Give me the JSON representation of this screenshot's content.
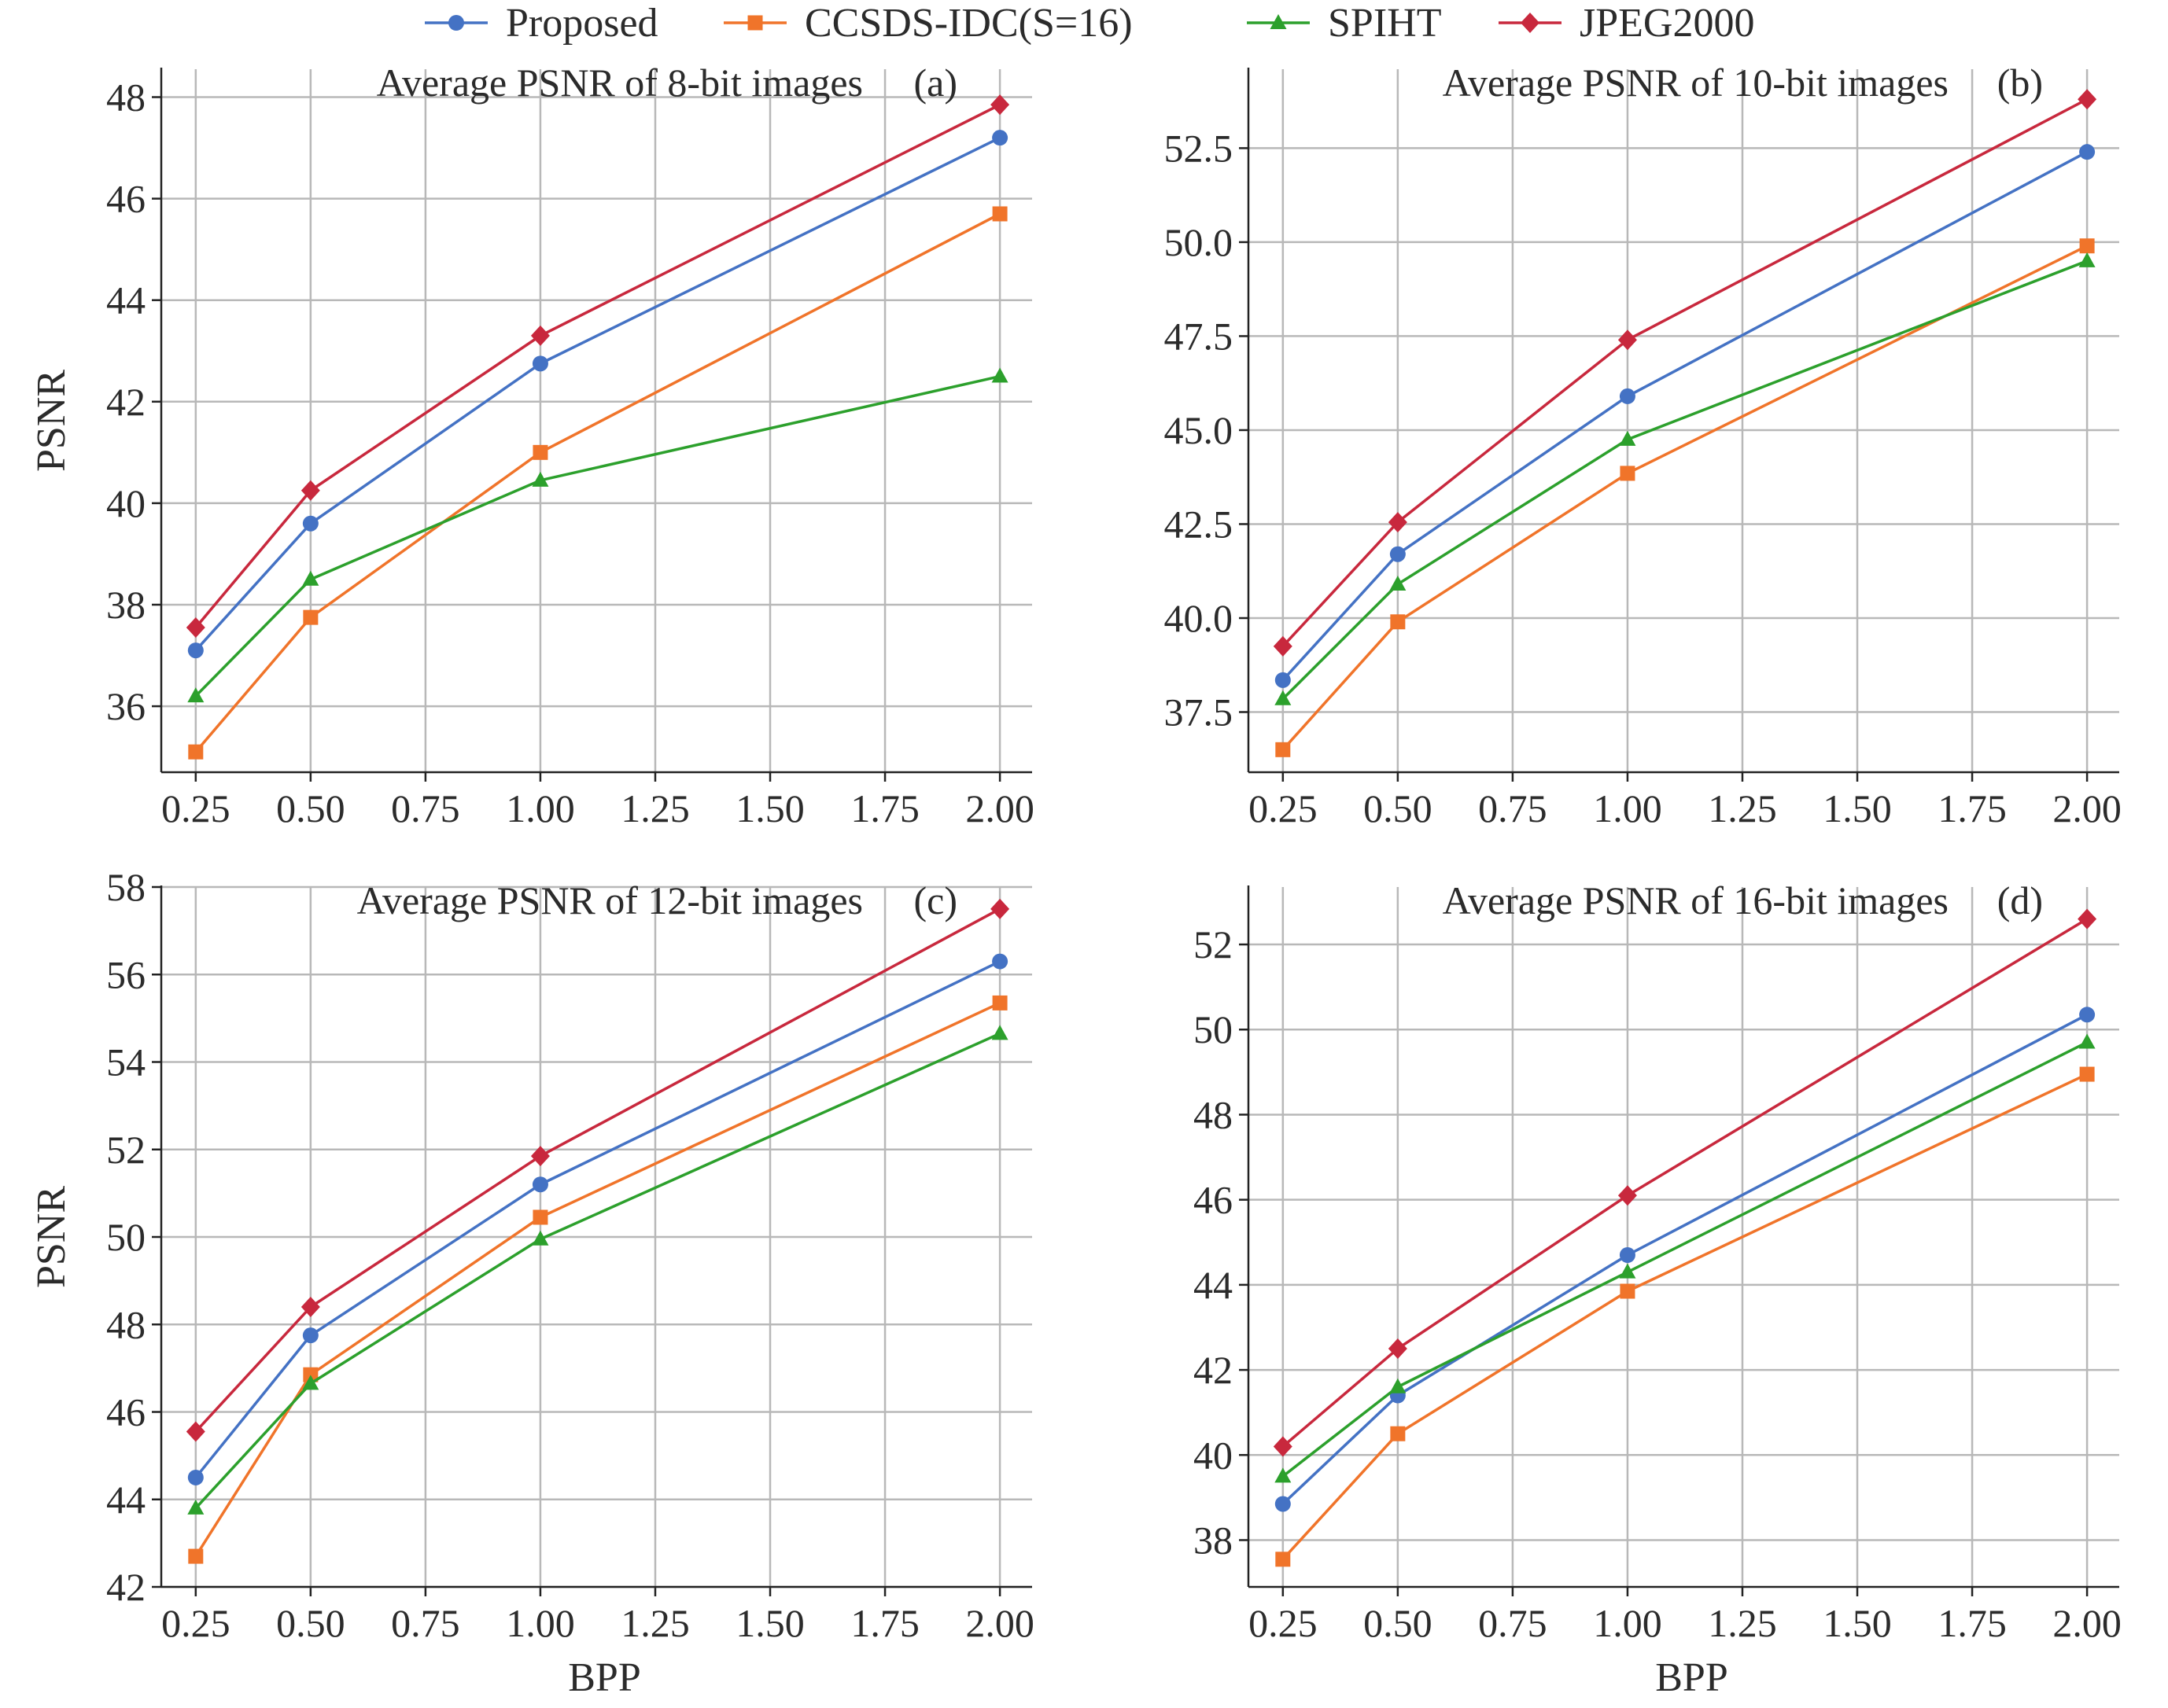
{
  "legend": [
    {
      "name": "Proposed",
      "color": "#4472c4",
      "marker": "circle"
    },
    {
      "name": "CCSDS-IDC(S=16)",
      "color": "#f0742a",
      "marker": "square"
    },
    {
      "name": "SPIHT",
      "color": "#2ca02c",
      "marker": "triangle"
    },
    {
      "name": "JPEG2000",
      "color": "#c8283d",
      "marker": "diamond"
    }
  ],
  "chart_data": [
    {
      "type": "line",
      "title": "Average PSNR of 8-bit images",
      "panel_label": "(a)",
      "xlabel": "",
      "ylabel": "PSNR",
      "x": [
        0.25,
        0.5,
        1.0,
        2.0
      ],
      "xlim": [
        0.175,
        2.07
      ],
      "ylim": [
        34.7,
        48.55
      ],
      "xticks": [
        "0.25",
        "0.50",
        "0.75",
        "1.00",
        "1.25",
        "1.50",
        "1.75",
        "2.00"
      ],
      "yticks": [
        "36",
        "38",
        "40",
        "42",
        "44",
        "46",
        "48"
      ],
      "grid": true,
      "series": [
        {
          "name": "Proposed",
          "values": [
            37.1,
            39.6,
            42.75,
            47.2
          ]
        },
        {
          "name": "CCSDS-IDC(S=16)",
          "values": [
            35.1,
            37.75,
            41.0,
            45.7
          ]
        },
        {
          "name": "SPIHT",
          "values": [
            36.2,
            38.5,
            40.45,
            42.5
          ]
        },
        {
          "name": "JPEG2000",
          "values": [
            37.55,
            40.25,
            43.3,
            47.85
          ]
        }
      ]
    },
    {
      "type": "line",
      "title": "Average PSNR of 10-bit images",
      "panel_label": "(b)",
      "xlabel": "",
      "ylabel": "",
      "x": [
        0.25,
        0.5,
        1.0,
        2.0
      ],
      "xlim": [
        0.175,
        2.07
      ],
      "ylim": [
        35.9,
        54.6
      ],
      "xticks": [
        "0.25",
        "0.50",
        "0.75",
        "1.00",
        "1.25",
        "1.50",
        "1.75",
        "2.00"
      ],
      "yticks": [
        "37.5",
        "40.0",
        "42.5",
        "45.0",
        "47.5",
        "50.0",
        "52.5"
      ],
      "grid": true,
      "series": [
        {
          "name": "Proposed",
          "values": [
            38.35,
            41.7,
            45.9,
            52.4
          ]
        },
        {
          "name": "CCSDS-IDC(S=16)",
          "values": [
            36.5,
            39.9,
            43.85,
            49.9
          ]
        },
        {
          "name": "SPIHT",
          "values": [
            37.85,
            40.9,
            44.75,
            49.5
          ]
        },
        {
          "name": "JPEG2000",
          "values": [
            39.25,
            42.55,
            47.4,
            53.8
          ]
        }
      ]
    },
    {
      "type": "line",
      "title": "Average PSNR of 12-bit images",
      "panel_label": "(c)",
      "xlabel": "BPP",
      "ylabel": "PSNR",
      "x": [
        0.25,
        0.5,
        1.0,
        2.0
      ],
      "xlim": [
        0.175,
        2.07
      ],
      "ylim": [
        42.0,
        58.0
      ],
      "xticks": [
        "0.25",
        "0.50",
        "0.75",
        "1.00",
        "1.25",
        "1.50",
        "1.75",
        "2.00"
      ],
      "yticks": [
        "42",
        "44",
        "46",
        "48",
        "50",
        "52",
        "54",
        "56",
        "58"
      ],
      "grid": true,
      "series": [
        {
          "name": "Proposed",
          "values": [
            44.5,
            47.75,
            51.2,
            56.3
          ]
        },
        {
          "name": "CCSDS-IDC(S=16)",
          "values": [
            42.7,
            46.85,
            50.45,
            55.35
          ]
        },
        {
          "name": "SPIHT",
          "values": [
            43.8,
            46.65,
            49.95,
            54.65
          ]
        },
        {
          "name": "JPEG2000",
          "values": [
            45.55,
            48.4,
            51.85,
            57.5
          ]
        }
      ]
    },
    {
      "type": "line",
      "title": "Average PSNR of 16-bit images",
      "panel_label": "(d)",
      "xlabel": "BPP",
      "ylabel": "",
      "x": [
        0.25,
        0.5,
        1.0,
        2.0
      ],
      "xlim": [
        0.175,
        2.07
      ],
      "ylim": [
        36.9,
        53.35
      ],
      "xticks": [
        "0.25",
        "0.50",
        "0.75",
        "1.00",
        "1.25",
        "1.50",
        "1.75",
        "2.00"
      ],
      "yticks": [
        "38",
        "40",
        "42",
        "44",
        "46",
        "48",
        "50",
        "52"
      ],
      "grid": true,
      "series": [
        {
          "name": "Proposed",
          "values": [
            38.85,
            41.4,
            44.7,
            50.35
          ]
        },
        {
          "name": "CCSDS-IDC(S=16)",
          "values": [
            37.55,
            40.5,
            43.85,
            48.95
          ]
        },
        {
          "name": "SPIHT",
          "values": [
            39.5,
            41.6,
            44.3,
            49.7
          ]
        },
        {
          "name": "JPEG2000",
          "values": [
            40.2,
            42.5,
            46.1,
            52.6
          ]
        }
      ]
    }
  ]
}
